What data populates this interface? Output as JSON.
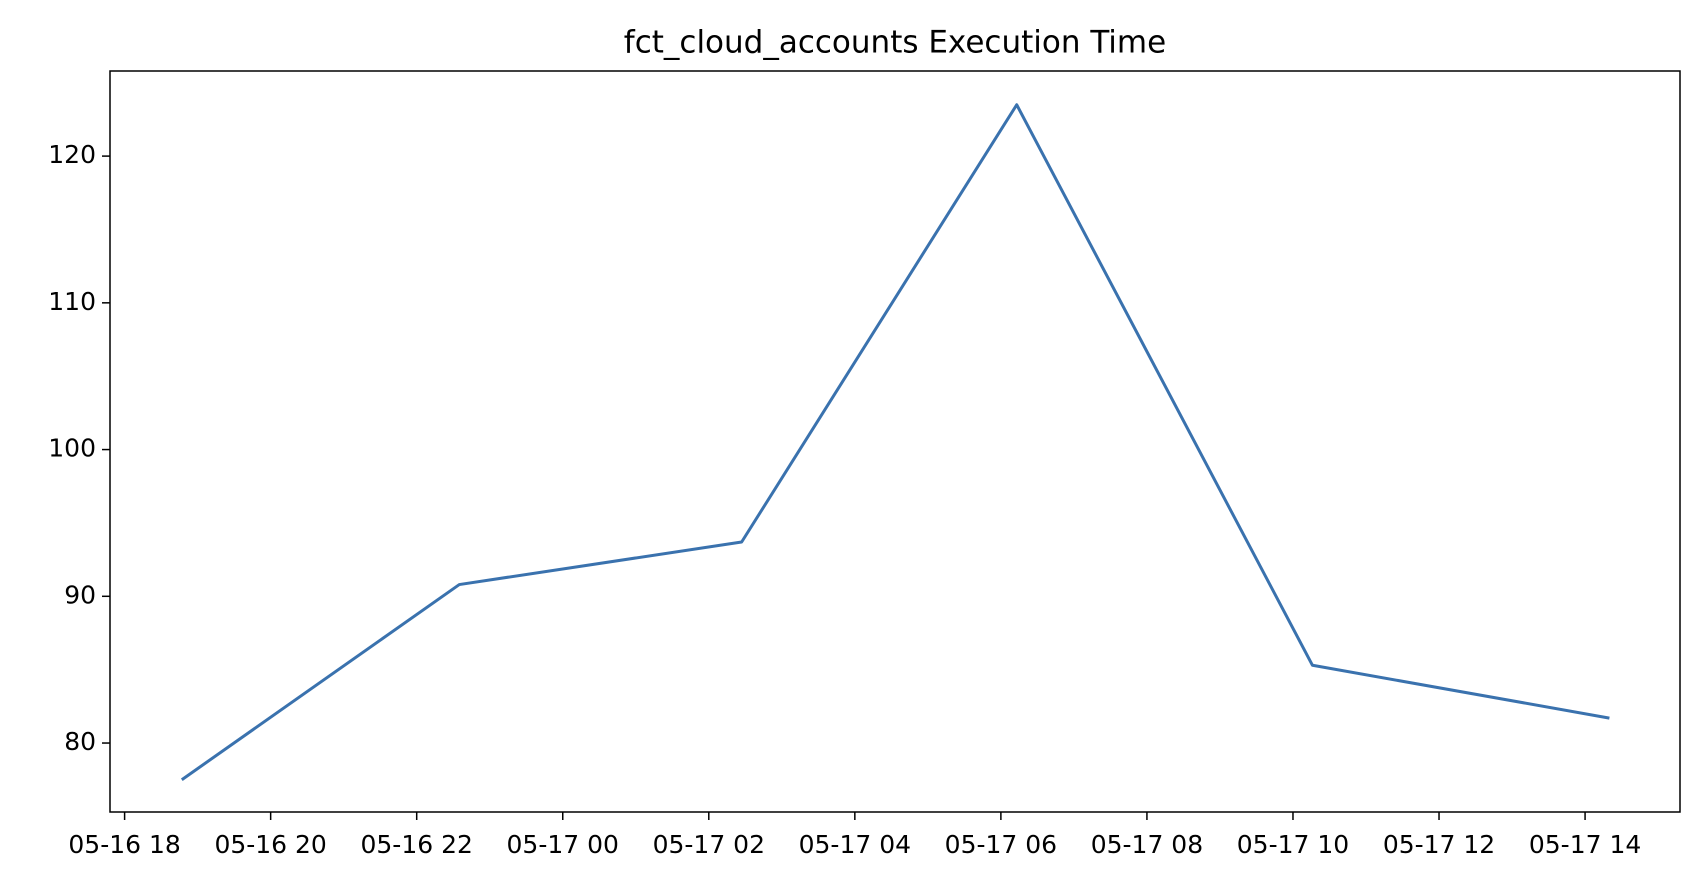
{
  "chart_data": {
    "type": "line",
    "title": "fct_cloud_accounts Execution Time",
    "x": [
      "05-16 18:47",
      "05-16 22:35",
      "05-17 02:27",
      "05-17 06:13",
      "05-17 10:16",
      "05-17 14:20"
    ],
    "series": [
      {
        "color": "#3a72ae",
        "values": [
          77.5,
          90.8,
          93.7,
          123.5,
          85.3,
          81.7
        ]
      }
    ],
    "xlim": [
      "05-16 17:48",
      "05-17 15:18"
    ],
    "xticks": [
      "05-16 18",
      "05-16 20",
      "05-16 22",
      "05-17 00",
      "05-17 02",
      "05-17 04",
      "05-17 06",
      "05-17 08",
      "05-17 10",
      "05-17 12",
      "05-17 14"
    ],
    "ylim": [
      75.3,
      125.8
    ],
    "yticks": [
      80,
      90,
      100,
      110,
      120
    ],
    "grid": false
  }
}
